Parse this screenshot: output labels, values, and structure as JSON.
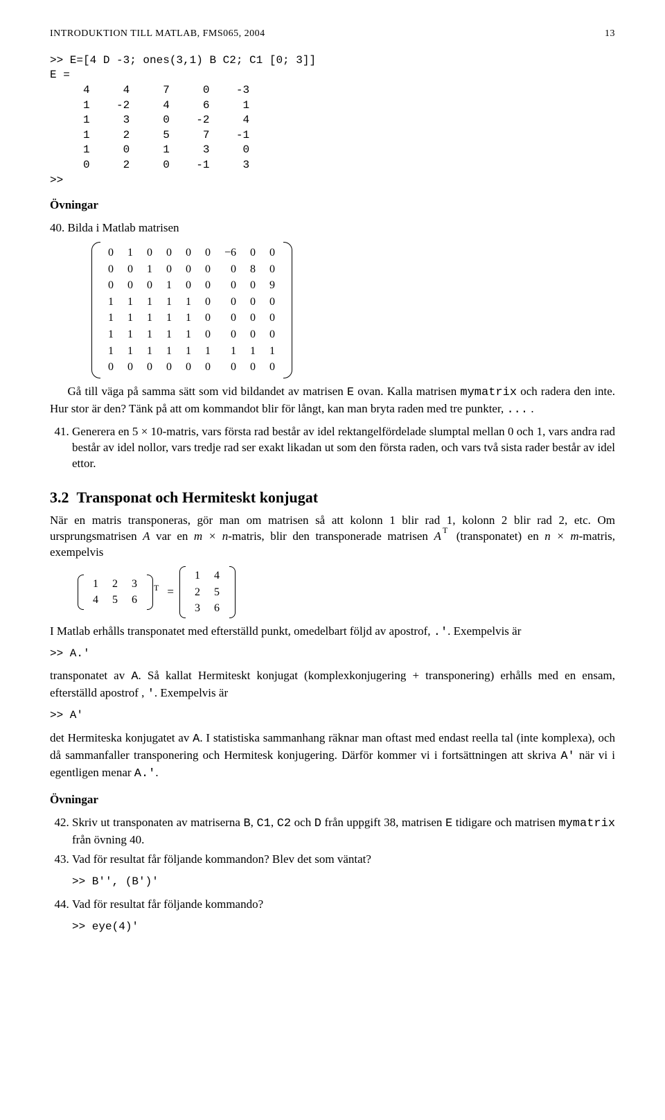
{
  "running_head": {
    "title": "INTRODUKTION TILL MATLAB, FMS065, 2004",
    "page": "13"
  },
  "code_block_1": ">> E=[4 D -3; ones(3,1) B C2; C1 [0; 3]]\nE =\n     4     4     7     0    -3\n     1    -2     4     6     1\n     1     3     0    -2     4\n     1     2     5     7    -1\n     1     0     1     3     0\n     0     2     0    -1     3\n>>",
  "ovningar_heading": "Övningar",
  "ex40_intro": "40. Bilda i Matlab matrisen",
  "big_matrix": {
    "rows": [
      [
        "0",
        "1",
        "0",
        "0",
        "0",
        "0",
        "−6",
        "0",
        "0"
      ],
      [
        "0",
        "0",
        "1",
        "0",
        "0",
        "0",
        "0",
        "8",
        "0"
      ],
      [
        "0",
        "0",
        "0",
        "1",
        "0",
        "0",
        "0",
        "0",
        "9"
      ],
      [
        "1",
        "1",
        "1",
        "1",
        "1",
        "0",
        "0",
        "0",
        "0"
      ],
      [
        "1",
        "1",
        "1",
        "1",
        "1",
        "0",
        "0",
        "0",
        "0"
      ],
      [
        "1",
        "1",
        "1",
        "1",
        "1",
        "0",
        "0",
        "0",
        "0"
      ],
      [
        "1",
        "1",
        "1",
        "1",
        "1",
        "1",
        "1",
        "1",
        "1"
      ],
      [
        "0",
        "0",
        "0",
        "0",
        "0",
        "0",
        "0",
        "0",
        "0"
      ]
    ]
  },
  "ex40_body_1": "Gå till väga på samma sätt som vid bildandet av matrisen ",
  "ex40_body_E": "E",
  "ex40_body_2": " ovan. Kalla matrisen ",
  "ex40_body_my": "mymatrix",
  "ex40_body_3": " och radera den inte. Hur stor är den? Tänk på att om kommandot blir för långt, kan man bryta raden med tre punkter, ",
  "ex40_body_dots": "...",
  "ex41": "Generera en 5 × 10-matris, vars första rad består av idel rektangelfördelade slumptal mellan 0 och 1, vars andra rad består av idel nollor, vars tredje rad ser exakt likadan ut som den första raden, och vars två sista rader består av idel ettor.",
  "sec32_num": "3.2",
  "sec32_title": "Transponat och Hermiteskt konjugat",
  "sec32_p1a": "När en matris transponeras, gör man om matrisen så att kolonn 1 blir rad 1, kolonn 2 blir rad 2, etc. Om ursprungsmatrisen ",
  "sec32_A": "A",
  "sec32_p1b": " var en ",
  "sec32_mn": "m × n",
  "sec32_p1c": "-matris, blir den transponerade matrisen ",
  "sec32_AT": "A",
  "sec32_T": "T",
  "sec32_p1d": " (transponatet) en ",
  "sec32_nm": "n × m",
  "sec32_p1e": "-matris, exempelvis",
  "mat_left": {
    "rows": [
      [
        "1",
        "2",
        "3"
      ],
      [
        "4",
        "5",
        "6"
      ]
    ]
  },
  "mat_right": {
    "rows": [
      [
        "1",
        "4"
      ],
      [
        "2",
        "5"
      ],
      [
        "3",
        "6"
      ]
    ]
  },
  "sec32_p2a": "I Matlab erhålls transponatet med efterställd punkt, omedelbart följd av apostrof, ",
  "sec32_dotap": ".'",
  "sec32_p2b": ". Exempelvis är",
  "code_A1": ">> A.'",
  "sec32_p3a": "transponatet av ",
  "sec32_p3a2": "A",
  "sec32_p3b": ". Så kallat Hermiteskt konjugat (komplexkonjugering + transponering) erhålls med en ensam, efterställd apostrof , ",
  "sec32_ap": "'",
  "sec32_p3c": ". Exempelvis är",
  "code_A2": ">> A'",
  "sec32_p4a": "det Hermiteska konjugatet av ",
  "sec32_p4a2": "A",
  "sec32_p4b": ". I statistiska sammanhang räknar man oftast med endast reella tal (inte komplexa), och då sammanfaller transponering och Hermitesk konjugering. Därför kommer vi i fortsättningen att skriva ",
  "sec32_p4c": "A'",
  "sec32_p4d": " när vi i egentligen menar ",
  "sec32_p4e": "A.'",
  "sec32_p4f": ".",
  "ex42a": "Skriv ut transponaten av matriserna ",
  "ex42_B": "B",
  "ex42_c1": ", ",
  "ex42_C1": "C1",
  "ex42_c2": ", ",
  "ex42_C2": "C2",
  "ex42_and": " och ",
  "ex42_D": "D",
  "ex42b": " från uppgift 38, matrisen ",
  "ex42_E": "E",
  "ex42c": " tidigare och matrisen ",
  "ex42_my": "mymatrix",
  "ex42d": " från övning 40.",
  "ex43": "Vad för resultat får följande kommandon? Blev det som väntat?",
  "code_B": ">> B'', (B')'",
  "ex44": "Vad för resultat får följande kommando?",
  "code_eye": ">> eye(4)'"
}
